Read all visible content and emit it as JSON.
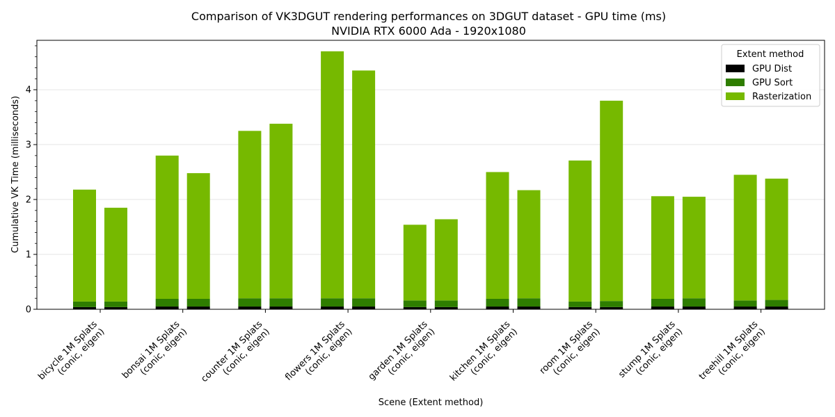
{
  "chart_data": {
    "type": "bar",
    "stacked": true,
    "title": "Comparison of VK3DGUT rendering performances on 3DGUT dataset - GPU time (ms)",
    "subtitle": "NVIDIA RTX 6000 Ada - 1920x1080",
    "xlabel": "Scene (Extent method)",
    "ylabel": "Cumulative VK Time (milliseconds)",
    "ylim": [
      0,
      4.9
    ],
    "yticks": [
      0,
      1,
      2,
      3,
      4
    ],
    "grid": "horizontal",
    "legend": {
      "title": "Extent method",
      "placement": "top-right"
    },
    "categories": [
      {
        "scene": "bicycle 1M Splats",
        "method": "(conic, eigen)"
      },
      {
        "scene": "bonsai 1M Splats",
        "method": "(conic, eigen)"
      },
      {
        "scene": "counter 1M Splats",
        "method": "(conic, eigen)"
      },
      {
        "scene": "flowers 1M Splats",
        "method": "(conic, eigen)"
      },
      {
        "scene": "garden 1M Splats",
        "method": "(conic, eigen)"
      },
      {
        "scene": "kitchen 1M Splats",
        "method": "(conic, eigen)"
      },
      {
        "scene": "room 1M Splats",
        "method": "(conic, eigen)"
      },
      {
        "scene": "stump 1M Splats",
        "method": "(conic, eigen)"
      },
      {
        "scene": "treehill 1M Splats",
        "method": "(conic, eigen)"
      }
    ],
    "bars_per_category": [
      "conic",
      "eigen"
    ],
    "series": [
      {
        "name": "GPU Dist",
        "color": "#000000",
        "values": [
          [
            0.04,
            0.04
          ],
          [
            0.05,
            0.05
          ],
          [
            0.05,
            0.05
          ],
          [
            0.05,
            0.05
          ],
          [
            0.04,
            0.04
          ],
          [
            0.05,
            0.05
          ],
          [
            0.04,
            0.04
          ],
          [
            0.05,
            0.05
          ],
          [
            0.05,
            0.05
          ]
        ]
      },
      {
        "name": "GPU Sort",
        "color": "#2e7d00",
        "values": [
          [
            0.1,
            0.1
          ],
          [
            0.14,
            0.14
          ],
          [
            0.15,
            0.15
          ],
          [
            0.15,
            0.15
          ],
          [
            0.12,
            0.12
          ],
          [
            0.14,
            0.15
          ],
          [
            0.1,
            0.11
          ],
          [
            0.14,
            0.15
          ],
          [
            0.11,
            0.12
          ]
        ]
      },
      {
        "name": "Rasterization",
        "color": "#76b900",
        "values": [
          [
            2.04,
            1.71
          ],
          [
            2.61,
            2.29
          ],
          [
            3.05,
            3.18
          ],
          [
            4.5,
            4.15
          ],
          [
            1.38,
            1.48
          ],
          [
            2.31,
            1.97
          ],
          [
            2.57,
            3.65
          ],
          [
            1.87,
            1.85
          ],
          [
            2.29,
            2.21
          ]
        ]
      }
    ]
  }
}
